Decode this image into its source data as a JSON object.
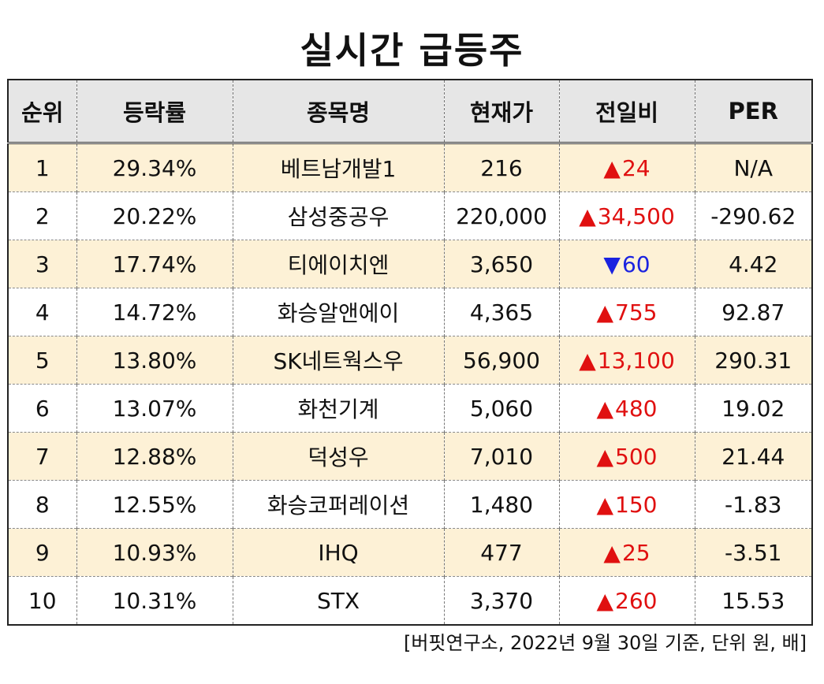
{
  "title": "실시간 급등주",
  "colors": {
    "up": "#e01010",
    "down": "#1a22e0",
    "row_highlight": "#fdf1d6",
    "header_bg": "#e6e6e6"
  },
  "table": {
    "headers": [
      "순위",
      "등락률",
      "종목명",
      "현재가",
      "전일비",
      "PER"
    ],
    "rows": [
      {
        "rank": "1",
        "rate": "29.34%",
        "name": "베트남개발1",
        "price": "216",
        "change_arrow": "▲",
        "change": "24",
        "direction": "up",
        "per": "N/A"
      },
      {
        "rank": "2",
        "rate": "20.22%",
        "name": "삼성중공우",
        "price": "220,000",
        "change_arrow": "▲",
        "change": "34,500",
        "direction": "up",
        "per": "-290.62"
      },
      {
        "rank": "3",
        "rate": "17.74%",
        "name": "티에이치엔",
        "price": "3,650",
        "change_arrow": "▼",
        "change": "60",
        "direction": "down",
        "per": "4.42"
      },
      {
        "rank": "4",
        "rate": "14.72%",
        "name": "화승알앤에이",
        "price": "4,365",
        "change_arrow": "▲",
        "change": "755",
        "direction": "up",
        "per": "92.87"
      },
      {
        "rank": "5",
        "rate": "13.80%",
        "name": "SK네트웍스우",
        "price": "56,900",
        "change_arrow": "▲",
        "change": "13,100",
        "direction": "up",
        "per": "290.31"
      },
      {
        "rank": "6",
        "rate": "13.07%",
        "name": "화천기계",
        "price": "5,060",
        "change_arrow": "▲",
        "change": "480",
        "direction": "up",
        "per": "19.02"
      },
      {
        "rank": "7",
        "rate": "12.88%",
        "name": "덕성우",
        "price": "7,010",
        "change_arrow": "▲",
        "change": "500",
        "direction": "up",
        "per": "21.44"
      },
      {
        "rank": "8",
        "rate": "12.55%",
        "name": "화승코퍼레이션",
        "price": "1,480",
        "change_arrow": "▲",
        "change": "150",
        "direction": "up",
        "per": "-1.83"
      },
      {
        "rank": "9",
        "rate": "10.93%",
        "name": "IHQ",
        "price": "477",
        "change_arrow": "▲",
        "change": "25",
        "direction": "up",
        "per": "-3.51"
      },
      {
        "rank": "10",
        "rate": "10.31%",
        "name": "STX",
        "price": "3,370",
        "change_arrow": "▲",
        "change": "260",
        "direction": "up",
        "per": "15.53"
      }
    ]
  },
  "source_note": "[버핏연구소, 2022년 9월 30일 기준, 단위 원, 배]"
}
